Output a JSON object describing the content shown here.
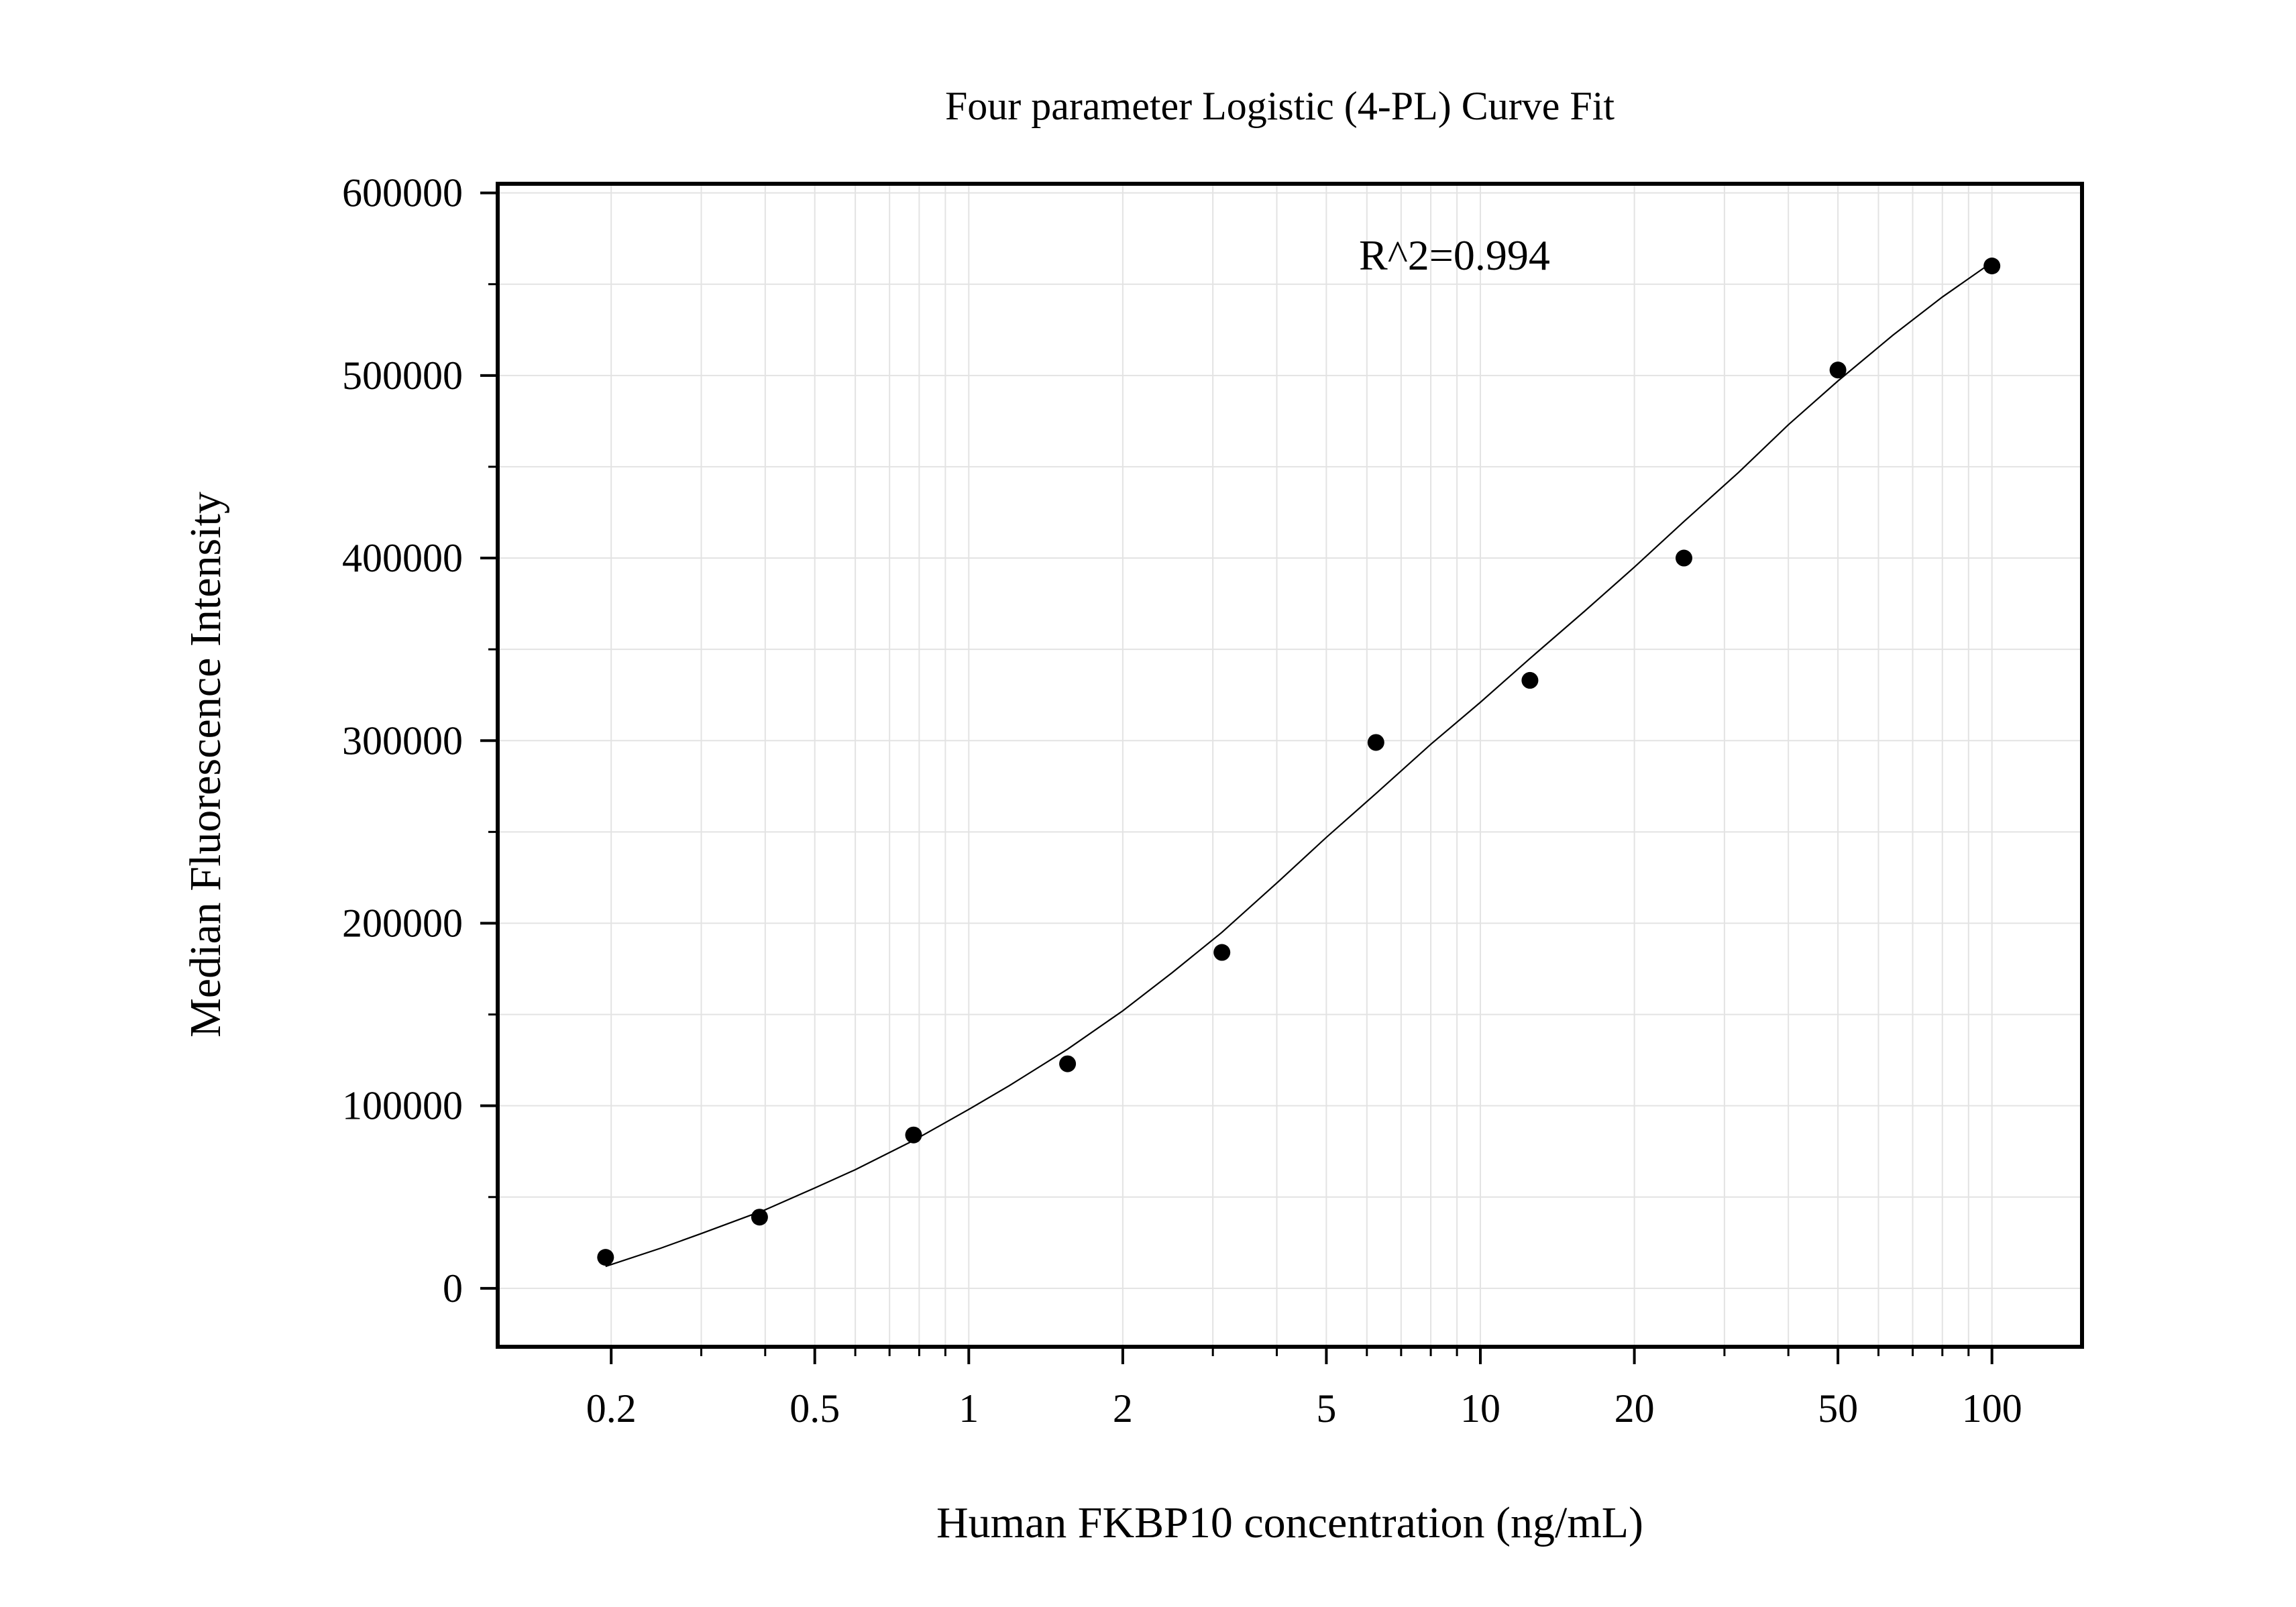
{
  "chart_data": {
    "type": "scatter",
    "title": "Four parameter Logistic (4-PL) Curve Fit",
    "xlabel": "Human FKBP10 concentration (ng/mL)",
    "ylabel": "Median Fluorescence Intensity",
    "x_scale": "log",
    "y_scale": "linear",
    "xlim": [
      0.12,
      150
    ],
    "ylim": [
      -32000,
      605000
    ],
    "x_ticks": [
      0.2,
      0.5,
      1,
      2,
      5,
      10,
      20,
      50,
      100
    ],
    "x_tick_labels": [
      "0.2",
      "0.5",
      "1",
      "2",
      "5",
      "10",
      "20",
      "50",
      "100"
    ],
    "y_ticks": [
      0,
      100000,
      200000,
      300000,
      400000,
      500000,
      600000
    ],
    "y_tick_labels": [
      "0",
      "100000",
      "200000",
      "300000",
      "400000",
      "500000",
      "600000"
    ],
    "grid": true,
    "annotation": "R^2=0.994",
    "series": [
      {
        "kind": "points",
        "color": "#000000",
        "x": [
          0.195,
          0.39,
          0.78,
          1.56,
          3.125,
          6.25,
          12.5,
          25,
          50,
          100
        ],
        "y": [
          17000,
          39000,
          84000,
          123000,
          184000,
          299000,
          333000,
          400000,
          503000,
          560000
        ]
      },
      {
        "kind": "fit",
        "color": "#000000",
        "x": [
          0.195,
          0.25,
          0.3,
          0.4,
          0.5,
          0.6,
          0.78,
          1,
          1.2,
          1.56,
          2,
          2.5,
          3.125,
          4,
          5,
          6.25,
          8,
          10,
          12.5,
          16,
          20,
          25,
          32,
          40,
          50,
          64,
          80,
          100
        ],
        "y": [
          12000,
          22000,
          30000,
          43000,
          55000,
          65000,
          81000,
          98000,
          111000,
          131000,
          152000,
          173000,
          195000,
          222000,
          247000,
          271000,
          298000,
          321000,
          345000,
          371000,
          395000,
          420000,
          447000,
          473000,
          497000,
          522000,
          543000,
          562000
        ]
      }
    ]
  }
}
